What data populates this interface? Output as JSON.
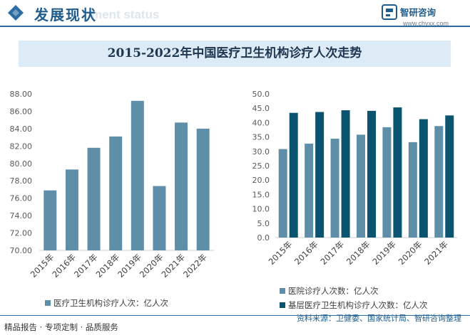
{
  "header": {
    "title": "发展现状",
    "ghost_text": "ment status",
    "brand_name": "智研咨询",
    "brand_url": "www.chyxx.com"
  },
  "banner": {
    "title": "2015-2022年中国医疗卫生机构诊疗人次走势"
  },
  "colors": {
    "accent": "#2b6ca3",
    "bar_light": "#5f8fa8",
    "bar_dark": "#0b5470",
    "banner_bg": "#dcebf6"
  },
  "chart_data": [
    {
      "type": "bar",
      "categories": [
        "2015年",
        "2016年",
        "2017年",
        "2018年",
        "2019年",
        "2020年",
        "2021年",
        "2022年"
      ],
      "series": [
        {
          "name": "医疗卫生机构诊疗人次：亿人次",
          "values": [
            76.9,
            79.3,
            81.8,
            83.1,
            87.2,
            77.4,
            84.7,
            84.0
          ]
        }
      ],
      "ylim": [
        70,
        88
      ],
      "yticks": [
        "70.00",
        "72.00",
        "74.00",
        "76.00",
        "78.00",
        "80.00",
        "82.00",
        "84.00",
        "86.00",
        "88.00"
      ],
      "legend": "bottom"
    },
    {
      "type": "bar",
      "categories": [
        "2015年",
        "2016年",
        "2017年",
        "2018年",
        "2019年",
        "2020年",
        "2021年"
      ],
      "series": [
        {
          "name": "医院诊疗人次数：亿人次",
          "values": [
            30.8,
            32.7,
            34.4,
            35.8,
            38.4,
            33.2,
            38.8
          ]
        },
        {
          "name": "基层医疗卫生机构诊疗人次数：亿人次",
          "values": [
            43.4,
            43.7,
            44.3,
            44.1,
            45.3,
            41.2,
            42.5
          ]
        }
      ],
      "ylim": [
        0,
        50
      ],
      "yticks": [
        "0.0",
        "5.0",
        "10.0",
        "15.0",
        "20.0",
        "25.0",
        "30.0",
        "35.0",
        "40.0",
        "45.0",
        "50.0"
      ],
      "legend": "bottom"
    }
  ],
  "footer": {
    "left": "精品报告 · 专项定制 · 品质服务",
    "right": "资料来源：卫健委、国家统计局、智研咨询整理"
  }
}
